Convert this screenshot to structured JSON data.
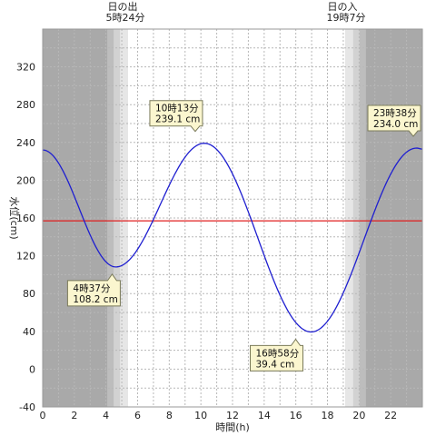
{
  "chart_data": {
    "type": "line",
    "xlabel": "時間(h)",
    "ylabel": "水位(cm)",
    "xlim": [
      0,
      24
    ],
    "ylim": [
      -40,
      360
    ],
    "x_ticks": [
      0,
      2,
      4,
      6,
      8,
      10,
      12,
      14,
      16,
      18,
      20,
      22
    ],
    "y_ticks": [
      -40,
      0,
      40,
      80,
      120,
      160,
      200,
      240,
      280,
      320
    ],
    "grid": true,
    "reference_line": {
      "y": 157,
      "color": "#e02020"
    },
    "sunrise": {
      "label": "日の出",
      "time": "5時24分",
      "hour": 5.4
    },
    "sunset": {
      "label": "日の入",
      "time": "19時7分",
      "hour": 19.117
    },
    "extremes": [
      {
        "kind": "low",
        "time_label": "4時37分",
        "value_label": "108.2 cm",
        "hour": 4.617,
        "value": 108.2
      },
      {
        "kind": "high",
        "time_label": "10時13分",
        "value_label": "239.1 cm",
        "hour": 10.217,
        "value": 239.1
      },
      {
        "kind": "low",
        "time_label": "16時58分",
        "value_label": "39.4 cm",
        "hour": 16.967,
        "value": 39.4
      },
      {
        "kind": "high",
        "time_label": "23時38分",
        "value_label": "234.0 cm",
        "hour": 23.633,
        "value": 234.0
      }
    ],
    "series": [
      {
        "color": "#1f1fd0",
        "x": [
          0,
          4.617,
          10.217,
          16.967,
          23.633,
          24
        ],
        "y": [
          232,
          108.2,
          239.1,
          39.4,
          234.0,
          233
        ]
      }
    ]
  }
}
